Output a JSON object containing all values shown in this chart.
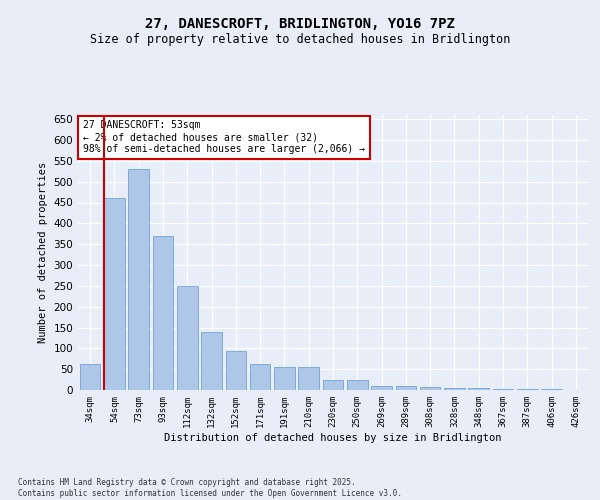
{
  "title_line1": "27, DANESCROFT, BRIDLINGTON, YO16 7PZ",
  "title_line2": "Size of property relative to detached houses in Bridlington",
  "xlabel": "Distribution of detached houses by size in Bridlington",
  "ylabel": "Number of detached properties",
  "categories": [
    "34sqm",
    "54sqm",
    "73sqm",
    "93sqm",
    "112sqm",
    "132sqm",
    "152sqm",
    "171sqm",
    "191sqm",
    "210sqm",
    "230sqm",
    "250sqm",
    "269sqm",
    "289sqm",
    "308sqm",
    "328sqm",
    "348sqm",
    "367sqm",
    "387sqm",
    "406sqm",
    "426sqm"
  ],
  "values": [
    62,
    462,
    530,
    370,
    250,
    140,
    93,
    62,
    55,
    55,
    25,
    25,
    10,
    10,
    7,
    6,
    4,
    3,
    2,
    2,
    1
  ],
  "bar_color": "#aec6e8",
  "bar_edge_color": "#5b9bd5",
  "highlight_bar_index": 1,
  "highlight_color": "#cc0000",
  "ylim": [
    0,
    660
  ],
  "yticks": [
    0,
    50,
    100,
    150,
    200,
    250,
    300,
    350,
    400,
    450,
    500,
    550,
    600,
    650
  ],
  "bg_color": "#e8eef8",
  "grid_color": "#ffffff",
  "annotation_title": "27 DANESCROFT: 53sqm",
  "annotation_line1": "← 2% of detached houses are smaller (32)",
  "annotation_line2": "98% of semi-detached houses are larger (2,066) →",
  "annotation_box_color": "#ffffff",
  "annotation_box_edge": "#cc0000",
  "vline_color": "#cc0000",
  "footer_line1": "Contains HM Land Registry data © Crown copyright and database right 2025.",
  "footer_line2": "Contains public sector information licensed under the Open Government Licence v3.0."
}
